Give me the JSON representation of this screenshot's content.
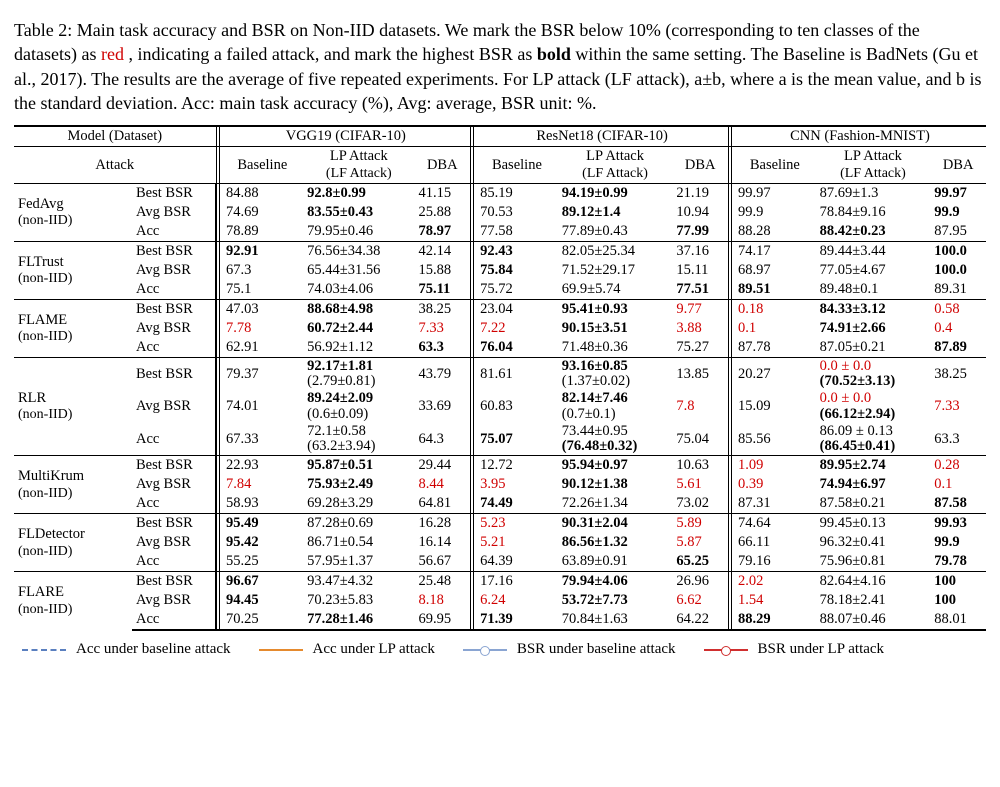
{
  "caption": {
    "prefix": "Table 2: Main task accuracy and BSR on Non-IID datasets. We mark the BSR below 10% (corresponding to ten classes of the datasets) as ",
    "red_word": "red",
    "mid": ", indicating a failed attack, and mark the highest BSR as ",
    "bold_word": "bold",
    "rest": " within the same setting. The Baseline is BadNets (Gu et al., 2017). The results are the average of five repeated experiments. For LP attack (LF attack), a±b, where a is the mean value, and b is the standard deviation. Acc: main task accuracy (%), Avg: average, BSR unit: %."
  },
  "header": {
    "model_label": "Model (Dataset)",
    "attack_label": "Attack",
    "datasets": [
      "VGG19 (CIFAR-10)",
      "ResNet18 (CIFAR-10)",
      "CNN (Fashion-MNIST)"
    ],
    "cols": {
      "baseline": "Baseline",
      "lp_top": "LP Attack",
      "lp_bot": "(LF Attack)",
      "dba": "DBA"
    }
  },
  "metrics": [
    "Best BSR",
    "Avg BSR",
    "Acc"
  ],
  "groups": [
    {
      "name": "FedAvg",
      "sub": "(non-IID)",
      "rows": [
        {
          "b": [
            "84.88",
            "92.8±0.99",
            "41.15",
            "85.19",
            "94.19±0.99",
            "21.19",
            "99.97",
            "87.69±1.3",
            "99.97"
          ],
          "bold": [
            1,
            4,
            8
          ],
          "red": []
        },
        {
          "b": [
            "74.69",
            "83.55±0.43",
            "25.88",
            "70.53",
            "89.12±1.4",
            "10.94",
            "99.9",
            "78.84±9.16",
            "99.9"
          ],
          "bold": [
            1,
            4,
            8
          ],
          "red": []
        },
        {
          "b": [
            "78.89",
            "79.95±0.46",
            "78.97",
            "77.58",
            "77.89±0.43",
            "77.99",
            "88.28",
            "88.42±0.23",
            "87.95"
          ],
          "bold": [
            2,
            5,
            7
          ],
          "red": []
        }
      ]
    },
    {
      "name": "FLTrust",
      "sub": "(non-IID)",
      "rows": [
        {
          "b": [
            "92.91",
            "76.56±34.38",
            "42.14",
            "92.43",
            "82.05±25.34",
            "37.16",
            "74.17",
            "89.44±3.44",
            "100.0"
          ],
          "bold": [
            0,
            3,
            8
          ],
          "red": []
        },
        {
          "b": [
            "67.3",
            "65.44±31.56",
            "15.88",
            "75.84",
            "71.52±29.17",
            "15.11",
            "68.97",
            "77.05±4.67",
            "100.0"
          ],
          "bold": [
            3,
            8
          ],
          "red": []
        },
        {
          "b": [
            "75.1",
            "74.03±4.06",
            "75.11",
            "75.72",
            "69.9±5.74",
            "77.51",
            "89.51",
            "89.48±0.1",
            "89.31"
          ],
          "bold": [
            2,
            5,
            6
          ],
          "red": []
        }
      ]
    },
    {
      "name": "FLAME",
      "sub": "(non-IID)",
      "rows": [
        {
          "b": [
            "47.03",
            "88.68±4.98",
            "38.25",
            "23.04",
            "95.41±0.93",
            "9.77",
            "0.18",
            "84.33±3.12",
            "0.58"
          ],
          "bold": [
            1,
            4,
            7
          ],
          "red": [
            5,
            6,
            8
          ]
        },
        {
          "b": [
            "7.78",
            "60.72±2.44",
            "7.33",
            "7.22",
            "90.15±3.51",
            "3.88",
            "0.1",
            "74.91±2.66",
            "0.4"
          ],
          "bold": [
            1,
            4,
            7
          ],
          "red": [
            0,
            2,
            3,
            5,
            6,
            8
          ]
        },
        {
          "b": [
            "62.91",
            "56.92±1.12",
            "63.3",
            "76.04",
            "71.48±0.36",
            "75.27",
            "87.78",
            "87.05±0.21",
            "87.89"
          ],
          "bold": [
            2,
            3,
            8
          ],
          "red": []
        }
      ]
    },
    {
      "name": "RLR",
      "sub": "(non-IID)",
      "stacked": true,
      "rows": [
        {
          "b": [
            "79.37",
            "92.17±1.81",
            "43.79",
            "81.61",
            "93.16±0.85",
            "13.85",
            "20.27",
            "0.0 ± 0.0",
            "38.25"
          ],
          "b2": [
            null,
            "(2.79±0.81)",
            null,
            null,
            "(1.37±0.02)",
            null,
            null,
            "(70.52±3.13)",
            null
          ],
          "bold": [
            1,
            4
          ],
          "bold2": [
            7
          ],
          "red": [
            7
          ],
          "red2": []
        },
        {
          "b": [
            "74.01",
            "89.24±2.09",
            "33.69",
            "60.83",
            "82.14±7.46",
            "7.8",
            "15.09",
            "0.0 ± 0.0",
            "7.33"
          ],
          "b2": [
            null,
            "(0.6±0.09)",
            null,
            null,
            "(0.7±0.1)",
            null,
            null,
            "(66.12±2.94)",
            null
          ],
          "bold": [
            1,
            4
          ],
          "bold2": [
            7
          ],
          "red": [
            5,
            7,
            8
          ],
          "red2": []
        },
        {
          "b": [
            "67.33",
            "72.1±0.58",
            "64.3",
            "75.07",
            "73.44±0.95",
            "75.04",
            "85.56",
            "86.09 ± 0.13",
            "63.3"
          ],
          "b2": [
            null,
            "(63.2±3.94)",
            null,
            null,
            "(76.48±0.32)",
            null,
            null,
            "(86.45±0.41)",
            null
          ],
          "bold": [
            3
          ],
          "bold2": [
            4,
            7
          ],
          "red": [],
          "red2": []
        }
      ]
    },
    {
      "name": "MultiKrum",
      "sub": "(non-IID)",
      "rows": [
        {
          "b": [
            "22.93",
            "95.87±0.51",
            "29.44",
            "12.72",
            "95.94±0.97",
            "10.63",
            "1.09",
            "89.95±2.74",
            "0.28"
          ],
          "bold": [
            1,
            4,
            7
          ],
          "red": [
            6,
            8
          ]
        },
        {
          "b": [
            "7.84",
            "75.93±2.49",
            "8.44",
            "3.95",
            "90.12±1.38",
            "5.61",
            "0.39",
            "74.94±6.97",
            "0.1"
          ],
          "bold": [
            1,
            4,
            7
          ],
          "red": [
            0,
            2,
            3,
            5,
            6,
            8
          ]
        },
        {
          "b": [
            "58.93",
            "69.28±3.29",
            "64.81",
            "74.49",
            "72.26±1.34",
            "73.02",
            "87.31",
            "87.58±0.21",
            "87.58"
          ],
          "bold": [
            3,
            8
          ],
          "red": []
        }
      ]
    },
    {
      "name": "FLDetector",
      "sub": "(non-IID)",
      "rows": [
        {
          "b": [
            "95.49",
            "87.28±0.69",
            "16.28",
            "5.23",
            "90.31±2.04",
            "5.89",
            "74.64",
            "99.45±0.13",
            "99.93"
          ],
          "bold": [
            0,
            4,
            8
          ],
          "red": [
            3,
            5
          ]
        },
        {
          "b": [
            "95.42",
            "86.71±0.54",
            "16.14",
            "5.21",
            "86.56±1.32",
            "5.87",
            "66.11",
            "96.32±0.41",
            "99.9"
          ],
          "bold": [
            0,
            4,
            8
          ],
          "red": [
            3,
            5
          ]
        },
        {
          "b": [
            "55.25",
            "57.95±1.37",
            "56.67",
            "64.39",
            "63.89±0.91",
            "65.25",
            "79.16",
            "75.96±0.81",
            "79.78"
          ],
          "bold": [
            5,
            8
          ],
          "red": []
        }
      ]
    },
    {
      "name": "FLARE",
      "sub": "(non-IID)",
      "rows": [
        {
          "b": [
            "96.67",
            "93.47±4.32",
            "25.48",
            "17.16",
            "79.94±4.06",
            "26.96",
            "2.02",
            "82.64±4.16",
            "100"
          ],
          "bold": [
            0,
            4,
            8
          ],
          "red": [
            6
          ]
        },
        {
          "b": [
            "94.45",
            "70.23±5.83",
            "8.18",
            "6.24",
            "53.72±7.73",
            "6.62",
            "1.54",
            "78.18±2.41",
            "100"
          ],
          "bold": [
            0,
            4,
            8
          ],
          "red": [
            2,
            3,
            5,
            6
          ]
        },
        {
          "b": [
            "70.25",
            "77.28±1.46",
            "69.95",
            "71.39",
            "70.84±1.63",
            "64.22",
            "88.29",
            "88.07±0.46",
            "88.01"
          ],
          "bold": [
            1,
            3,
            6
          ],
          "red": []
        }
      ]
    }
  ],
  "legend": {
    "a": "Acc under baseline attack",
    "b": "Acc under LP attack",
    "c": "BSR under baseline attack",
    "d": "BSR under LP attack"
  },
  "colors": {
    "red_text": "#d00000",
    "line_dashed": "#5a7fbf",
    "line_orange": "#e58a2e",
    "line_blue": "#5a7fbf",
    "line_red": "#d02f2f"
  }
}
